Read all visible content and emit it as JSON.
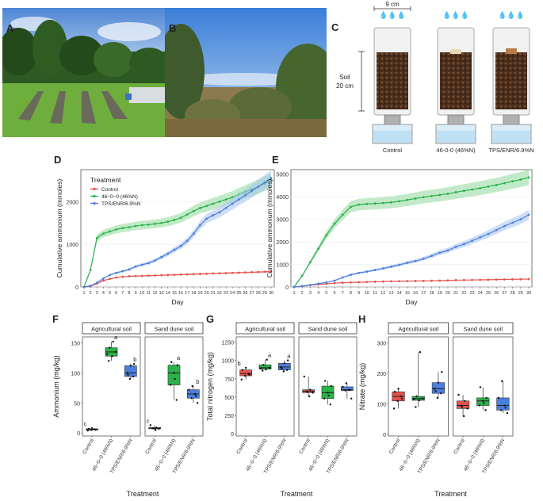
{
  "panels": {
    "A": "A",
    "B": "B",
    "C": "C",
    "D": "D",
    "E": "E",
    "F": "F",
    "G": "G",
    "H": "H"
  },
  "colors": {
    "control": "#e4534d",
    "urea": "#2bb24a",
    "tps": "#4a7fe0",
    "control_fill": "#f4a6a2",
    "urea_fill": "#8fd89a",
    "tps_fill": "#a7c2f1"
  },
  "columns": {
    "dimension": "9 cm",
    "soil_label": "Soil",
    "soil_depth": "20 cm",
    "labels": [
      "Control",
      "46-0-0 (46%N)",
      "TPS/ENR/6.9%N"
    ]
  },
  "chart_data": [
    {
      "id": "D",
      "type": "line",
      "xlabel": "Day",
      "ylabel": "Cumulative ammonium (mmoles)",
      "x": [
        1,
        2,
        3,
        4,
        5,
        6,
        7,
        8,
        9,
        10,
        11,
        12,
        13,
        14,
        15,
        16,
        17,
        18,
        19,
        20,
        21,
        22,
        23,
        24,
        25,
        26,
        27,
        28,
        29,
        30
      ],
      "xticks": [
        "1",
        "2",
        "3",
        "4",
        "5",
        "6",
        "7",
        "8",
        "9",
        "10",
        "11",
        "12",
        "13",
        "14",
        "15",
        "16",
        "17",
        "18",
        "19",
        "20",
        "21",
        "22",
        "23",
        "24",
        "25",
        "26",
        "27",
        "28",
        "29",
        "30"
      ],
      "yticks": [
        0,
        1000,
        2000
      ],
      "ylim": [
        0,
        2750
      ],
      "legend_title": "Treatment",
      "legend_position": "top-left",
      "series": [
        {
          "name": "Control",
          "values": [
            0,
            20,
            80,
            150,
            190,
            220,
            240,
            250,
            255,
            260,
            265,
            270,
            275,
            280,
            285,
            290,
            295,
            300,
            305,
            310,
            315,
            320,
            325,
            330,
            335,
            340,
            345,
            350,
            355,
            360
          ]
        },
        {
          "name": "46−0−0 (46%N)",
          "values": [
            0,
            400,
            1150,
            1250,
            1300,
            1350,
            1380,
            1400,
            1430,
            1450,
            1460,
            1480,
            1500,
            1530,
            1570,
            1620,
            1700,
            1780,
            1850,
            1900,
            1950,
            2000,
            2050,
            2100,
            2170,
            2230,
            2290,
            2350,
            2420,
            2500
          ]
        },
        {
          "name": "TPS/ENR/6.9%N",
          "values": [
            0,
            30,
            100,
            200,
            280,
            330,
            370,
            410,
            480,
            520,
            560,
            620,
            700,
            780,
            870,
            960,
            1080,
            1250,
            1450,
            1600,
            1680,
            1750,
            1850,
            1950,
            2050,
            2150,
            2250,
            2350,
            2450,
            2550
          ]
        }
      ]
    },
    {
      "id": "E",
      "type": "line",
      "xlabel": "Day",
      "ylabel": "Cumulative ammonium (mmoles)",
      "x": [
        1,
        2,
        3,
        4,
        5,
        6,
        7,
        8,
        9,
        10,
        11,
        12,
        13,
        14,
        15,
        16,
        17,
        18,
        19,
        20,
        21,
        22,
        23,
        24,
        25,
        26,
        27,
        28,
        29,
        30
      ],
      "xticks": [
        "1",
        "2",
        "3",
        "4",
        "5",
        "6",
        "7",
        "8",
        "9",
        "10",
        "11",
        "12",
        "13",
        "14",
        "15",
        "16",
        "17",
        "18",
        "19",
        "20",
        "21",
        "22",
        "23",
        "24",
        "25",
        "26",
        "27",
        "28",
        "29",
        "30"
      ],
      "yticks": [
        0,
        1000,
        2000,
        3000,
        4000,
        5000
      ],
      "ylim": [
        0,
        5200
      ],
      "series": [
        {
          "name": "Control",
          "values": [
            0,
            30,
            80,
            110,
            140,
            170,
            190,
            200,
            210,
            220,
            230,
            240,
            250,
            255,
            260,
            265,
            270,
            275,
            280,
            290,
            300,
            305,
            310,
            315,
            320,
            330,
            335,
            340,
            345,
            350
          ]
        },
        {
          "name": "46−0−0 (46%N)",
          "values": [
            0,
            500,
            1100,
            1700,
            2300,
            2800,
            3200,
            3550,
            3650,
            3680,
            3700,
            3720,
            3750,
            3800,
            3860,
            3920,
            3980,
            4030,
            4080,
            4130,
            4200,
            4260,
            4320,
            4380,
            4450,
            4520,
            4600,
            4680,
            4760,
            4850
          ]
        },
        {
          "name": "TPS/ENR/6.9%N",
          "values": [
            0,
            40,
            90,
            150,
            200,
            280,
            420,
            540,
            620,
            680,
            750,
            820,
            900,
            980,
            1070,
            1150,
            1250,
            1380,
            1520,
            1620,
            1780,
            1900,
            2050,
            2200,
            2350,
            2520,
            2700,
            2850,
            3000,
            3200
          ]
        }
      ]
    },
    {
      "id": "F",
      "type": "box",
      "xlabel": "Treatment",
      "ylabel": "Ammonium (mg/kg)",
      "yticks": [
        0,
        50,
        100,
        150
      ],
      "ylim": [
        -5,
        160
      ],
      "facets": [
        "Agricultural soil",
        "Sand dune soil"
      ],
      "categories": [
        "Control",
        "46−0−0 (46%N)",
        "TPS/ENR/6.9%N"
      ],
      "boxes": [
        {
          "facet": 0,
          "cat": 0,
          "min": 4,
          "q1": 5,
          "median": 6,
          "q3": 7,
          "max": 8,
          "letter": "c"
        },
        {
          "facet": 0,
          "cat": 1,
          "min": 120,
          "q1": 128,
          "median": 135,
          "q3": 142,
          "max": 152,
          "letter": "a"
        },
        {
          "facet": 0,
          "cat": 2,
          "min": 90,
          "q1": 94,
          "median": 100,
          "q3": 112,
          "max": 115,
          "letter": "b"
        },
        {
          "facet": 1,
          "cat": 0,
          "min": 5,
          "q1": 7,
          "median": 8,
          "q3": 9,
          "max": 13,
          "letter": "c"
        },
        {
          "facet": 1,
          "cat": 1,
          "min": 55,
          "q1": 80,
          "median": 100,
          "q3": 113,
          "max": 118,
          "letter": "a"
        },
        {
          "facet": 1,
          "cat": 2,
          "min": 50,
          "q1": 58,
          "median": 65,
          "q3": 72,
          "max": 78,
          "letter": "b"
        }
      ]
    },
    {
      "id": "G",
      "type": "box",
      "xlabel": "Treatment",
      "ylabel": "Total nitrogen (mg/kg)",
      "yticks": [
        0,
        250,
        500,
        750,
        1000,
        1250
      ],
      "ylim": [
        -30,
        1320
      ],
      "facets": [
        "Agricultural soil",
        "Sand dune soil"
      ],
      "categories": [
        "Control",
        "46−0−0 (46%N)",
        "TPS/ENR/6.9%N"
      ],
      "boxes": [
        {
          "facet": 0,
          "cat": 0,
          "min": 740,
          "q1": 790,
          "median": 820,
          "q3": 870,
          "max": 900,
          "letter": "b"
        },
        {
          "facet": 0,
          "cat": 1,
          "min": 860,
          "q1": 880,
          "median": 900,
          "q3": 940,
          "max": 1010,
          "letter": "a"
        },
        {
          "facet": 0,
          "cat": 2,
          "min": 850,
          "q1": 870,
          "median": 910,
          "q3": 960,
          "max": 1000,
          "letter": "a"
        },
        {
          "facet": 1,
          "cat": 0,
          "min": 510,
          "q1": 560,
          "median": 580,
          "q3": 600,
          "max": 780
        },
        {
          "facet": 1,
          "cat": 1,
          "min": 400,
          "q1": 480,
          "median": 560,
          "q3": 650,
          "max": 720
        },
        {
          "facet": 1,
          "cat": 2,
          "min": 480,
          "q1": 590,
          "median": 600,
          "q3": 640,
          "max": 690
        }
      ]
    },
    {
      "id": "H",
      "type": "box",
      "xlabel": "Treatment",
      "ylabel": "Nitrate (mg/kg)",
      "yticks": [
        0,
        100,
        200,
        300
      ],
      "ylim": [
        -5,
        320
      ],
      "facets": [
        "Agricultural soil",
        "Sand dune soil"
      ],
      "categories": [
        "Control",
        "46−0−0 (46%N)",
        "TPS/ENR/6.9%N"
      ],
      "boxes": [
        {
          "facet": 0,
          "cat": 0,
          "min": 85,
          "q1": 110,
          "median": 125,
          "q3": 140,
          "max": 150
        },
        {
          "facet": 0,
          "cat": 1,
          "min": 90,
          "q1": 112,
          "median": 118,
          "q3": 125,
          "max": 270
        },
        {
          "facet": 0,
          "cat": 2,
          "min": 120,
          "q1": 135,
          "median": 150,
          "q3": 170,
          "max": 205
        },
        {
          "facet": 1,
          "cat": 0,
          "min": 60,
          "q1": 85,
          "median": 95,
          "q3": 110,
          "max": 130
        },
        {
          "facet": 1,
          "cat": 1,
          "min": 80,
          "q1": 95,
          "median": 110,
          "q3": 120,
          "max": 155
        },
        {
          "facet": 1,
          "cat": 2,
          "min": 70,
          "q1": 80,
          "median": 95,
          "q3": 120,
          "max": 175
        }
      ]
    }
  ]
}
